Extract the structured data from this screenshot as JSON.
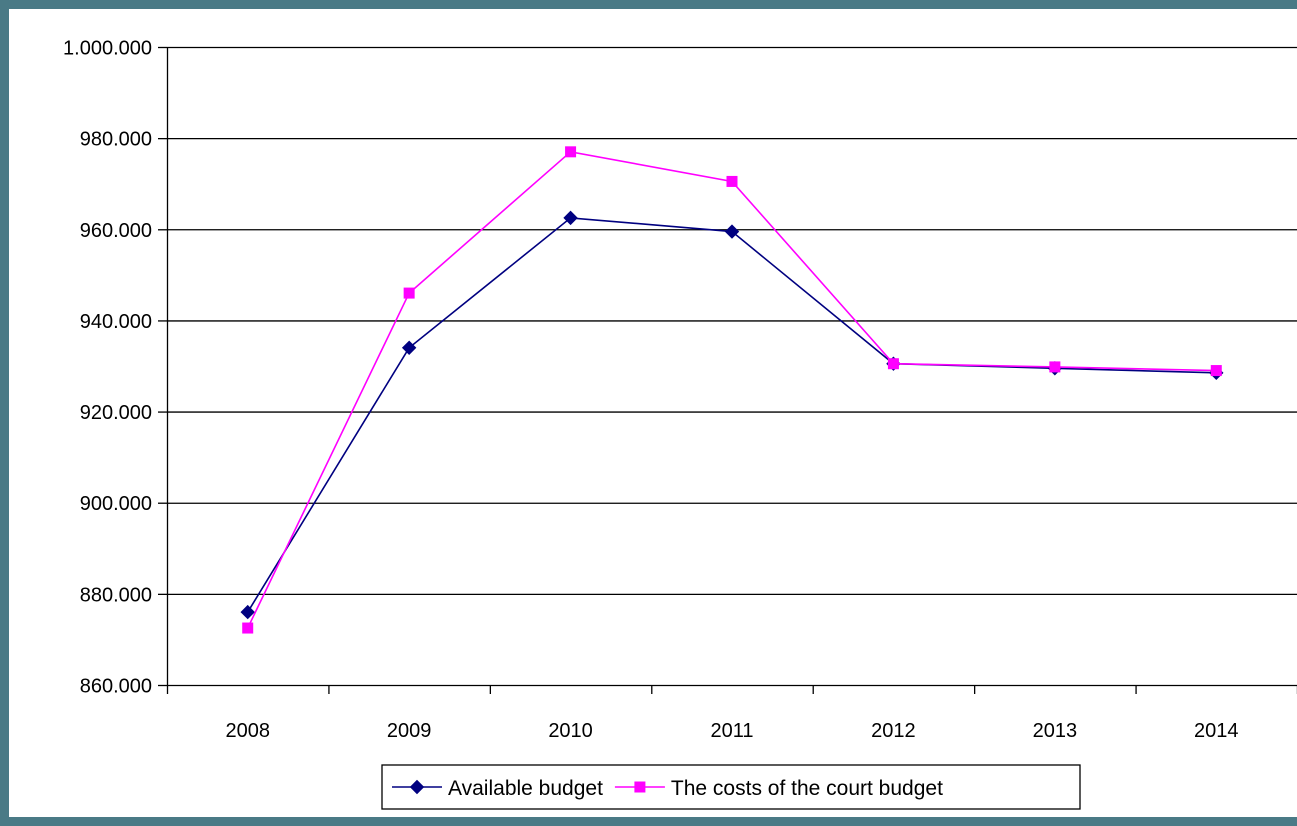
{
  "chart_data": {
    "type": "line",
    "title": "",
    "xlabel": "",
    "ylabel": "",
    "categories": [
      "2008",
      "2009",
      "2010",
      "2011",
      "2012",
      "2013",
      "2014"
    ],
    "ylim": [
      860000,
      1000000
    ],
    "y_ticks": [
      860000,
      880000,
      900000,
      920000,
      940000,
      960000,
      980000,
      1000000
    ],
    "y_tick_labels": [
      "860.000",
      "880.000",
      "900.000",
      "920.000",
      "940.000",
      "960.000",
      "980.000",
      "1.000.000"
    ],
    "grid": true,
    "legend_position": "bottom",
    "series": [
      {
        "name": "Available budget",
        "color": "#000080",
        "marker": "diamond",
        "values": [
          876000,
          934000,
          962500,
          959500,
          930500,
          929500,
          928500
        ]
      },
      {
        "name": "The costs of the court budget",
        "color": "#ff00ff",
        "marker": "square",
        "values": [
          872500,
          946000,
          977000,
          970500,
          930500,
          929800,
          929000
        ]
      }
    ]
  }
}
